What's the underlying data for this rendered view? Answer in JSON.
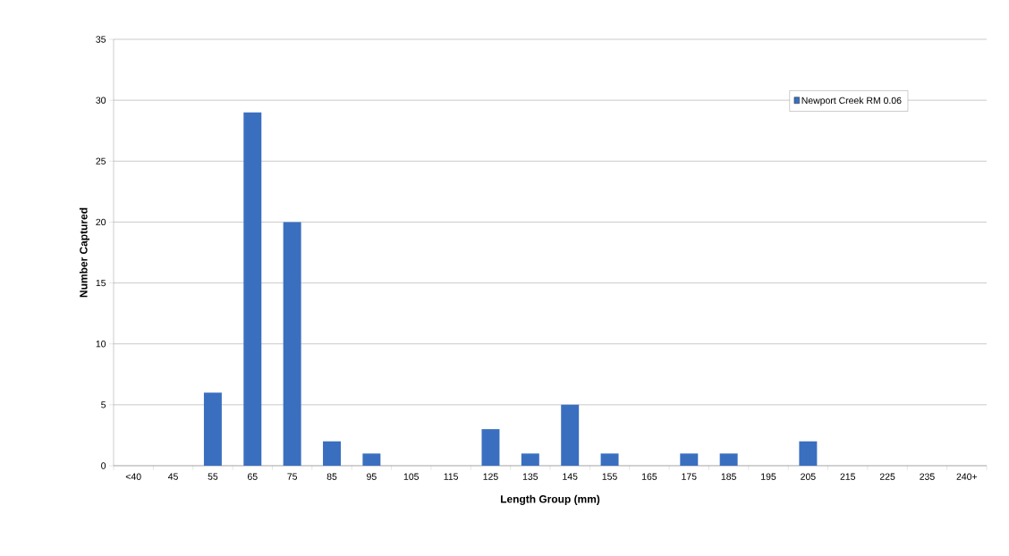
{
  "chart_data": {
    "type": "bar",
    "xlabel": "Length Group (mm)",
    "ylabel": "Number Captured",
    "categories": [
      "<40",
      "45",
      "55",
      "65",
      "75",
      "85",
      "95",
      "105",
      "115",
      "125",
      "135",
      "145",
      "155",
      "165",
      "175",
      "185",
      "195",
      "205",
      "215",
      "225",
      "235",
      "240+"
    ],
    "series": [
      {
        "name": "Newport Creek RM 0.06",
        "color": "#3a6fc0",
        "values": [
          0,
          0,
          6,
          29,
          20,
          2,
          1,
          0,
          0,
          3,
          1,
          5,
          1,
          0,
          1,
          1,
          0,
          2,
          0,
          0,
          0,
          0
        ]
      }
    ],
    "ylim": [
      0,
      35
    ],
    "yticks": [
      0,
      5,
      10,
      15,
      20,
      25,
      30,
      35
    ],
    "grid": "y",
    "legend": "top right"
  }
}
